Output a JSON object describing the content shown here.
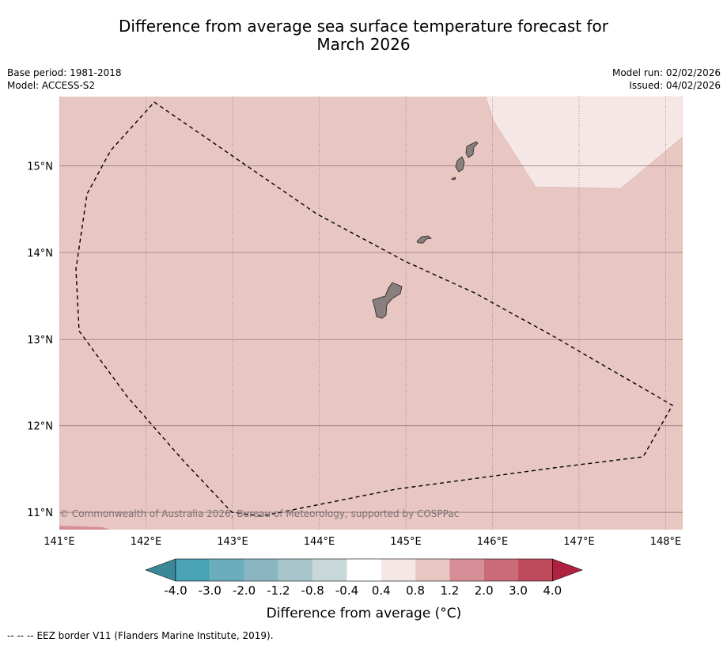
{
  "title": {
    "line1": "Difference from average sea surface temperature forecast for",
    "line2": "March 2026"
  },
  "base_period": "Base period: 1981-2018",
  "model": "Model: ACCESS-S2",
  "model_run": "Model run: 02/02/2026",
  "issued": "Issued: 04/02/2026",
  "map": {
    "lon_range": [
      141.0,
      148.2
    ],
    "lat_range": [
      10.8,
      15.8
    ],
    "lon_ticks": [
      {
        "value": 141,
        "label": "141°E"
      },
      {
        "value": 142,
        "label": "142°E"
      },
      {
        "value": 143,
        "label": "143°E"
      },
      {
        "value": 144,
        "label": "144°E"
      },
      {
        "value": 145,
        "label": "145°E"
      },
      {
        "value": 146,
        "label": "146°E"
      },
      {
        "value": 147,
        "label": "147°E"
      },
      {
        "value": 148,
        "label": "148°E"
      }
    ],
    "lat_ticks": [
      {
        "value": 15,
        "label": "15°N"
      },
      {
        "value": 14,
        "label": "14°N"
      },
      {
        "value": 13,
        "label": "13°N"
      },
      {
        "value": 12,
        "label": "12°N"
      },
      {
        "value": 11,
        "label": "11°N"
      }
    ],
    "background_anomaly_range": "0.8 to 1.2",
    "colors": {
      "background": "#e8c6c2",
      "cooler_patch": "#f5e7e5",
      "warmer_patch": "#d68f97",
      "land": "#8a7f7f",
      "gridline": "#8a7070"
    },
    "copyright": "© Commonwealth of Australia 2026, Bureau of Meteorology, supported by COSPPac"
  },
  "colorbar": {
    "label": "Difference from average (°C)",
    "colors": [
      "#3a8898",
      "#4aa3b5",
      "#6badbd",
      "#8ab6c3",
      "#a7c5ca",
      "#c8d8db",
      "#ffffff",
      "#f5e7e5",
      "#e8c6c2",
      "#d68f97",
      "#ca6b78",
      "#bf4a5c",
      "#b0213f"
    ],
    "tick_labels": [
      "-4.0",
      "-3.0",
      "-2.0",
      "-1.2",
      "-0.8",
      "-0.4",
      "0.4",
      "0.8",
      "1.2",
      "2.0",
      "3.0",
      "4.0"
    ]
  },
  "legend": {
    "eez_symbol": "--  --  --",
    "eez_label": "EEZ border V11 (Flanders Marine Institute, 2019)."
  }
}
